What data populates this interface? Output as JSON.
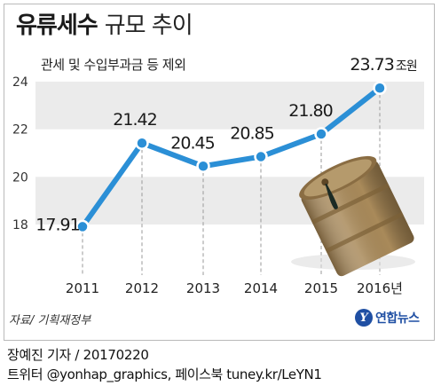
{
  "header": {
    "title_bold": "유류세수",
    "title_light": "규모 추이",
    "subtitle": "관세 및 수입부과금 등 제외"
  },
  "footer": {
    "source": "자료/ 기획재정부",
    "logo_name": "연합뉴스",
    "author": "장예진 기자 / 20170220",
    "social": "트위터 @yonhap_graphics, 페이스북 tuney.kr/LeYN1"
  },
  "colors": {
    "line": "#2b8fd6",
    "band": "#ebebeb",
    "text": "#1a1a1a"
  },
  "chart_data": {
    "type": "line",
    "x": [
      "2011",
      "2012",
      "2013",
      "2014",
      "2015",
      "2016"
    ],
    "x_tick_labels": [
      "2011",
      "2012",
      "2013",
      "2014",
      "2015",
      "2016년"
    ],
    "values": [
      17.91,
      21.42,
      20.45,
      20.85,
      21.8,
      23.73
    ],
    "value_labels": [
      "17.91",
      "21.42",
      "20.45",
      "20.85",
      "21.80",
      "23.73"
    ],
    "last_value_unit": "조원",
    "y_ticks": [
      18,
      20,
      22,
      24
    ],
    "ylim": [
      18,
      24
    ],
    "grid": "alternating horizontal bands",
    "title": "유류세수 규모 추이",
    "subtitle": "관세 및 수입부과금 등 제외"
  }
}
